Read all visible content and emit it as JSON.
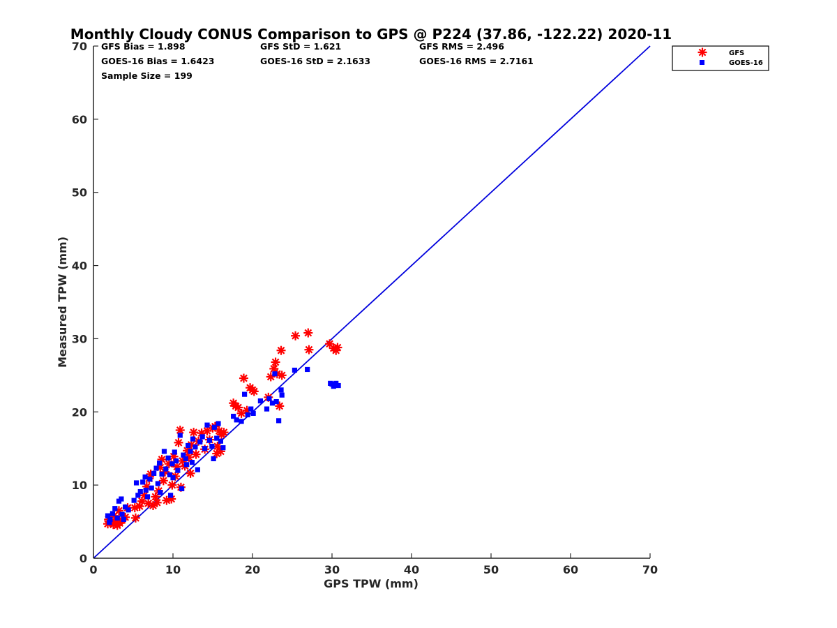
{
  "chart_data": {
    "type": "scatter",
    "title": "Monthly Cloudy CONUS Comparison to GPS @ P224 (37.86, -122.22) 2020-11",
    "xlabel": "GPS TPW (mm)",
    "ylabel": "Measured TPW (mm)",
    "xlim": [
      0,
      70
    ],
    "ylim": [
      0,
      70
    ],
    "xticks": [
      "0",
      "10",
      "20",
      "30",
      "40",
      "50",
      "60",
      "70"
    ],
    "yticks": [
      "0",
      "10",
      "20",
      "30",
      "40",
      "50",
      "60",
      "70"
    ],
    "grid": false,
    "legend_position": "top-right",
    "reference_line": {
      "x": [
        0,
        70
      ],
      "y": [
        0,
        70
      ],
      "color": "#0000dd"
    },
    "stats": {
      "gfs_bias": "GFS Bias = 1.898",
      "gfs_std": "GFS StD = 1.621",
      "gfs_rms": "GFS RMS = 2.496",
      "goes_bias": "GOES-16 Bias = 1.6423",
      "goes_std": "GOES-16 StD = 2.1633",
      "goes_rms": "GOES-16 RMS = 2.7161",
      "sample_size": "Sample Size = 199"
    },
    "series": [
      {
        "name": "GFS",
        "marker": "asterisk",
        "color": "#ff0000",
        "points": [
          [
            1.8,
            4.7
          ],
          [
            2.2,
            5.0
          ],
          [
            2.5,
            4.6
          ],
          [
            2.8,
            4.9
          ],
          [
            3.0,
            4.5
          ],
          [
            3.3,
            4.8
          ],
          [
            3.6,
            5.2
          ],
          [
            3.2,
            6.5
          ],
          [
            4.0,
            5.6
          ],
          [
            4.3,
            6.9
          ],
          [
            1.9,
            5.3
          ],
          [
            2.6,
            5.8
          ],
          [
            5.3,
            5.5
          ],
          [
            5.2,
            6.9
          ],
          [
            5.8,
            7.1
          ],
          [
            6.1,
            7.8
          ],
          [
            6.4,
            8.6
          ],
          [
            6.7,
            9.8
          ],
          [
            7.0,
            10.9
          ],
          [
            7.2,
            11.5
          ],
          [
            7.5,
            7.2
          ],
          [
            7.8,
            8.4
          ],
          [
            8.0,
            7.6
          ],
          [
            8.2,
            9.2
          ],
          [
            8.4,
            12.4
          ],
          [
            8.6,
            13.5
          ],
          [
            8.8,
            10.6
          ],
          [
            9.0,
            11.8
          ],
          [
            9.2,
            7.9
          ],
          [
            9.5,
            12.9
          ],
          [
            9.8,
            8.1
          ],
          [
            9.9,
            10.0
          ],
          [
            10.1,
            13.9
          ],
          [
            10.3,
            11.2
          ],
          [
            10.5,
            12.5
          ],
          [
            10.7,
            15.8
          ],
          [
            10.9,
            17.5
          ],
          [
            11.0,
            9.7
          ],
          [
            11.2,
            13.3
          ],
          [
            11.5,
            12.6
          ],
          [
            11.8,
            14.7
          ],
          [
            12.0,
            13.8
          ],
          [
            12.3,
            15.5
          ],
          [
            12.6,
            17.2
          ],
          [
            12.9,
            14.2
          ],
          [
            13.2,
            16.0
          ],
          [
            13.6,
            17.1
          ],
          [
            14.0,
            14.9
          ],
          [
            14.3,
            17.4
          ],
          [
            14.6,
            16.2
          ],
          [
            15.0,
            17.8
          ],
          [
            15.3,
            18.0
          ],
          [
            15.6,
            15.3
          ],
          [
            15.8,
            17.4
          ],
          [
            16.1,
            16.9
          ],
          [
            16.4,
            17.2
          ],
          [
            15.5,
            14.3
          ],
          [
            16.0,
            14.6
          ],
          [
            12.2,
            11.6
          ],
          [
            6.9,
            7.5
          ],
          [
            17.6,
            21.2
          ],
          [
            17.9,
            20.8
          ],
          [
            18.2,
            20.6
          ],
          [
            18.6,
            19.8
          ],
          [
            18.9,
            24.6
          ],
          [
            19.3,
            20.2
          ],
          [
            19.7,
            23.3
          ],
          [
            20.0,
            23.0
          ],
          [
            20.2,
            22.8
          ],
          [
            22.0,
            22.0
          ],
          [
            22.3,
            24.8
          ],
          [
            22.7,
            25.9
          ],
          [
            22.9,
            26.8
          ],
          [
            23.1,
            25.2
          ],
          [
            23.4,
            20.8
          ],
          [
            23.6,
            28.4
          ],
          [
            23.7,
            25.0
          ],
          [
            25.4,
            30.4
          ],
          [
            27.0,
            30.8
          ],
          [
            27.1,
            28.5
          ],
          [
            29.7,
            29.3
          ],
          [
            30.2,
            28.7
          ],
          [
            30.5,
            28.4
          ],
          [
            30.7,
            28.8
          ]
        ]
      },
      {
        "name": "GOES-16",
        "marker": "square",
        "color": "#0000ff",
        "points": [
          [
            1.8,
            5.8
          ],
          [
            2.1,
            5.3
          ],
          [
            2.4,
            6.1
          ],
          [
            2.7,
            6.8
          ],
          [
            3.0,
            5.5
          ],
          [
            3.2,
            7.8
          ],
          [
            3.5,
            8.1
          ],
          [
            3.8,
            5.3
          ],
          [
            4.0,
            7.0
          ],
          [
            4.4,
            6.6
          ],
          [
            2.0,
            4.9
          ],
          [
            3.6,
            6.0
          ],
          [
            5.1,
            7.9
          ],
          [
            5.4,
            10.3
          ],
          [
            5.6,
            8.6
          ],
          [
            5.9,
            9.1
          ],
          [
            6.2,
            10.4
          ],
          [
            6.5,
            11.1
          ],
          [
            6.8,
            8.4
          ],
          [
            7.1,
            10.8
          ],
          [
            7.3,
            9.6
          ],
          [
            7.6,
            11.6
          ],
          [
            7.9,
            12.3
          ],
          [
            8.1,
            10.2
          ],
          [
            8.3,
            13.0
          ],
          [
            8.6,
            11.5
          ],
          [
            8.9,
            14.6
          ],
          [
            9.1,
            12.2
          ],
          [
            9.4,
            13.7
          ],
          [
            9.6,
            11.4
          ],
          [
            9.9,
            12.9
          ],
          [
            10.2,
            14.5
          ],
          [
            10.4,
            13.3
          ],
          [
            10.6,
            12.0
          ],
          [
            10.9,
            16.8
          ],
          [
            11.1,
            9.5
          ],
          [
            11.3,
            14.1
          ],
          [
            11.6,
            13.6
          ],
          [
            11.9,
            15.4
          ],
          [
            12.2,
            14.6
          ],
          [
            12.5,
            16.3
          ],
          [
            12.8,
            15.2
          ],
          [
            13.1,
            12.1
          ],
          [
            13.4,
            15.9
          ],
          [
            13.7,
            16.6
          ],
          [
            14.0,
            15.0
          ],
          [
            14.3,
            18.2
          ],
          [
            14.6,
            16.1
          ],
          [
            14.9,
            15.3
          ],
          [
            15.2,
            17.9
          ],
          [
            15.5,
            16.4
          ],
          [
            15.7,
            18.4
          ],
          [
            16.0,
            16.0
          ],
          [
            16.3,
            15.1
          ],
          [
            15.1,
            13.6
          ],
          [
            12.4,
            13.1
          ],
          [
            9.7,
            8.6
          ],
          [
            6.6,
            9.3
          ],
          [
            8.4,
            9.0
          ],
          [
            10.0,
            11.0
          ],
          [
            17.6,
            19.4
          ],
          [
            18.0,
            18.9
          ],
          [
            18.6,
            18.7
          ],
          [
            19.0,
            22.4
          ],
          [
            19.4,
            19.6
          ],
          [
            19.8,
            20.4
          ],
          [
            20.1,
            19.8
          ],
          [
            21.0,
            21.5
          ],
          [
            21.8,
            20.4
          ],
          [
            22.1,
            21.8
          ],
          [
            22.5,
            21.2
          ],
          [
            22.8,
            25.2
          ],
          [
            23.0,
            21.4
          ],
          [
            23.3,
            18.8
          ],
          [
            23.6,
            23.0
          ],
          [
            23.7,
            22.3
          ],
          [
            25.3,
            25.7
          ],
          [
            26.9,
            25.8
          ],
          [
            29.8,
            23.9
          ],
          [
            30.2,
            23.5
          ],
          [
            30.5,
            23.9
          ],
          [
            30.8,
            23.6
          ],
          [
            30.0,
            23.8
          ],
          [
            11.7,
            12.8
          ]
        ]
      }
    ]
  }
}
